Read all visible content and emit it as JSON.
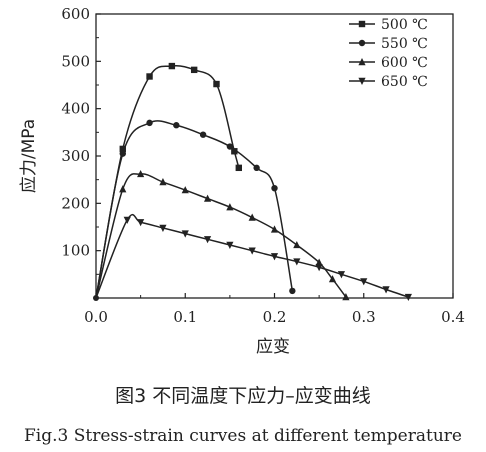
{
  "caption_cn": "图3  不同温度下应力–应变曲线",
  "caption_en": "Fig.3  Stress-strain curves at different temperature",
  "chart_data": {
    "type": "line",
    "xlabel": "应变",
    "ylabel": "应力/MPa",
    "xlim": [
      0,
      0.4
    ],
    "ylim": [
      0,
      600
    ],
    "xticks": [
      0.0,
      0.1,
      0.2,
      0.3,
      0.4
    ],
    "xtick_labels": [
      "0.0",
      "0.1",
      "0.2",
      "0.3",
      "0.4"
    ],
    "yticks": [
      100,
      200,
      300,
      400,
      500,
      600
    ],
    "ytick_labels": [
      "100",
      "200",
      "300",
      "400",
      "500",
      "600"
    ],
    "legend_position": "top-right",
    "series": [
      {
        "name": "500 ℃",
        "marker": "square",
        "x": [
          0.0,
          0.03,
          0.06,
          0.085,
          0.11,
          0.135,
          0.155,
          0.16
        ],
        "y": [
          0,
          315,
          468,
          490,
          482,
          452,
          310,
          275
        ]
      },
      {
        "name": "550 ℃",
        "marker": "circle",
        "x": [
          0.0,
          0.03,
          0.06,
          0.09,
          0.12,
          0.15,
          0.18,
          0.2,
          0.22
        ],
        "y": [
          0,
          305,
          370,
          365,
          345,
          320,
          275,
          232,
          15
        ]
      },
      {
        "name": "600 ℃",
        "marker": "triangle-up",
        "x": [
          0.0,
          0.03,
          0.05,
          0.075,
          0.1,
          0.125,
          0.15,
          0.175,
          0.2,
          0.225,
          0.25,
          0.265,
          0.28
        ],
        "y": [
          0,
          230,
          262,
          245,
          228,
          210,
          192,
          170,
          145,
          112,
          75,
          40,
          2
        ]
      },
      {
        "name": "650 ℃",
        "marker": "triangle-down",
        "x": [
          0.0,
          0.035,
          0.05,
          0.075,
          0.1,
          0.125,
          0.15,
          0.175,
          0.2,
          0.225,
          0.25,
          0.275,
          0.3,
          0.325,
          0.35
        ],
        "y": [
          0,
          165,
          160,
          148,
          136,
          124,
          112,
          100,
          88,
          77,
          65,
          50,
          35,
          18,
          2
        ]
      }
    ]
  }
}
